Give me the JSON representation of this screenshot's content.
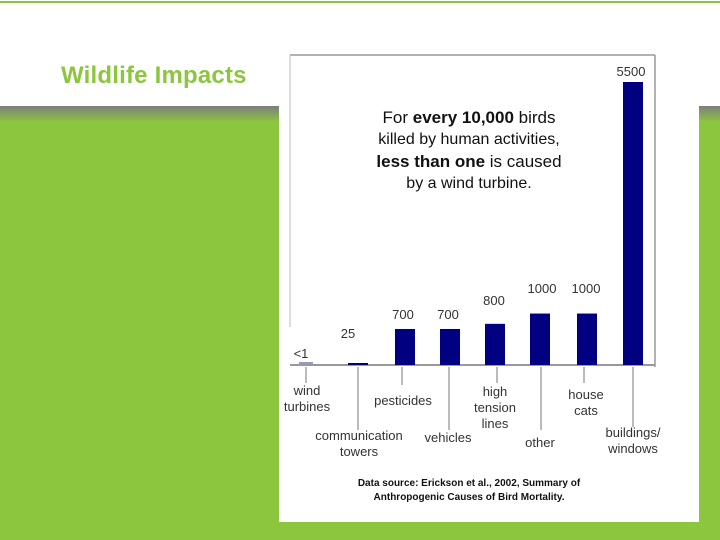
{
  "slide": {
    "title": "Wildlife Impacts"
  },
  "colors": {
    "background": "#8cc63f",
    "bar": "#000080",
    "title": "#8cc63f",
    "panel": "#ffffff"
  },
  "callout": {
    "line1_pre": "For ",
    "line1_bold": "every 10,000",
    "line1_post": " birds",
    "line2": "killed by human activities,",
    "line3_bold": "less than one",
    "line3_post": " is caused",
    "line4": "by a wind turbine."
  },
  "source": {
    "line1": "Data source: Erickson et al., 2002, Summary of",
    "line2": "Anthropogenic Causes of Bird Mortality."
  },
  "chart_data": {
    "type": "bar",
    "categories": [
      "wind turbines",
      "communication towers",
      "pesticides",
      "vehicles",
      "high tension lines",
      "other",
      "house cats",
      "buildings/ windows"
    ],
    "values": [
      0.5,
      25,
      700,
      700,
      800,
      1000,
      1000,
      5500
    ],
    "value_labels": [
      "<1",
      "25",
      "700",
      "700",
      "800",
      "1000",
      "1000",
      "5500"
    ],
    "ylim": [
      0,
      5500
    ],
    "grid": false
  }
}
